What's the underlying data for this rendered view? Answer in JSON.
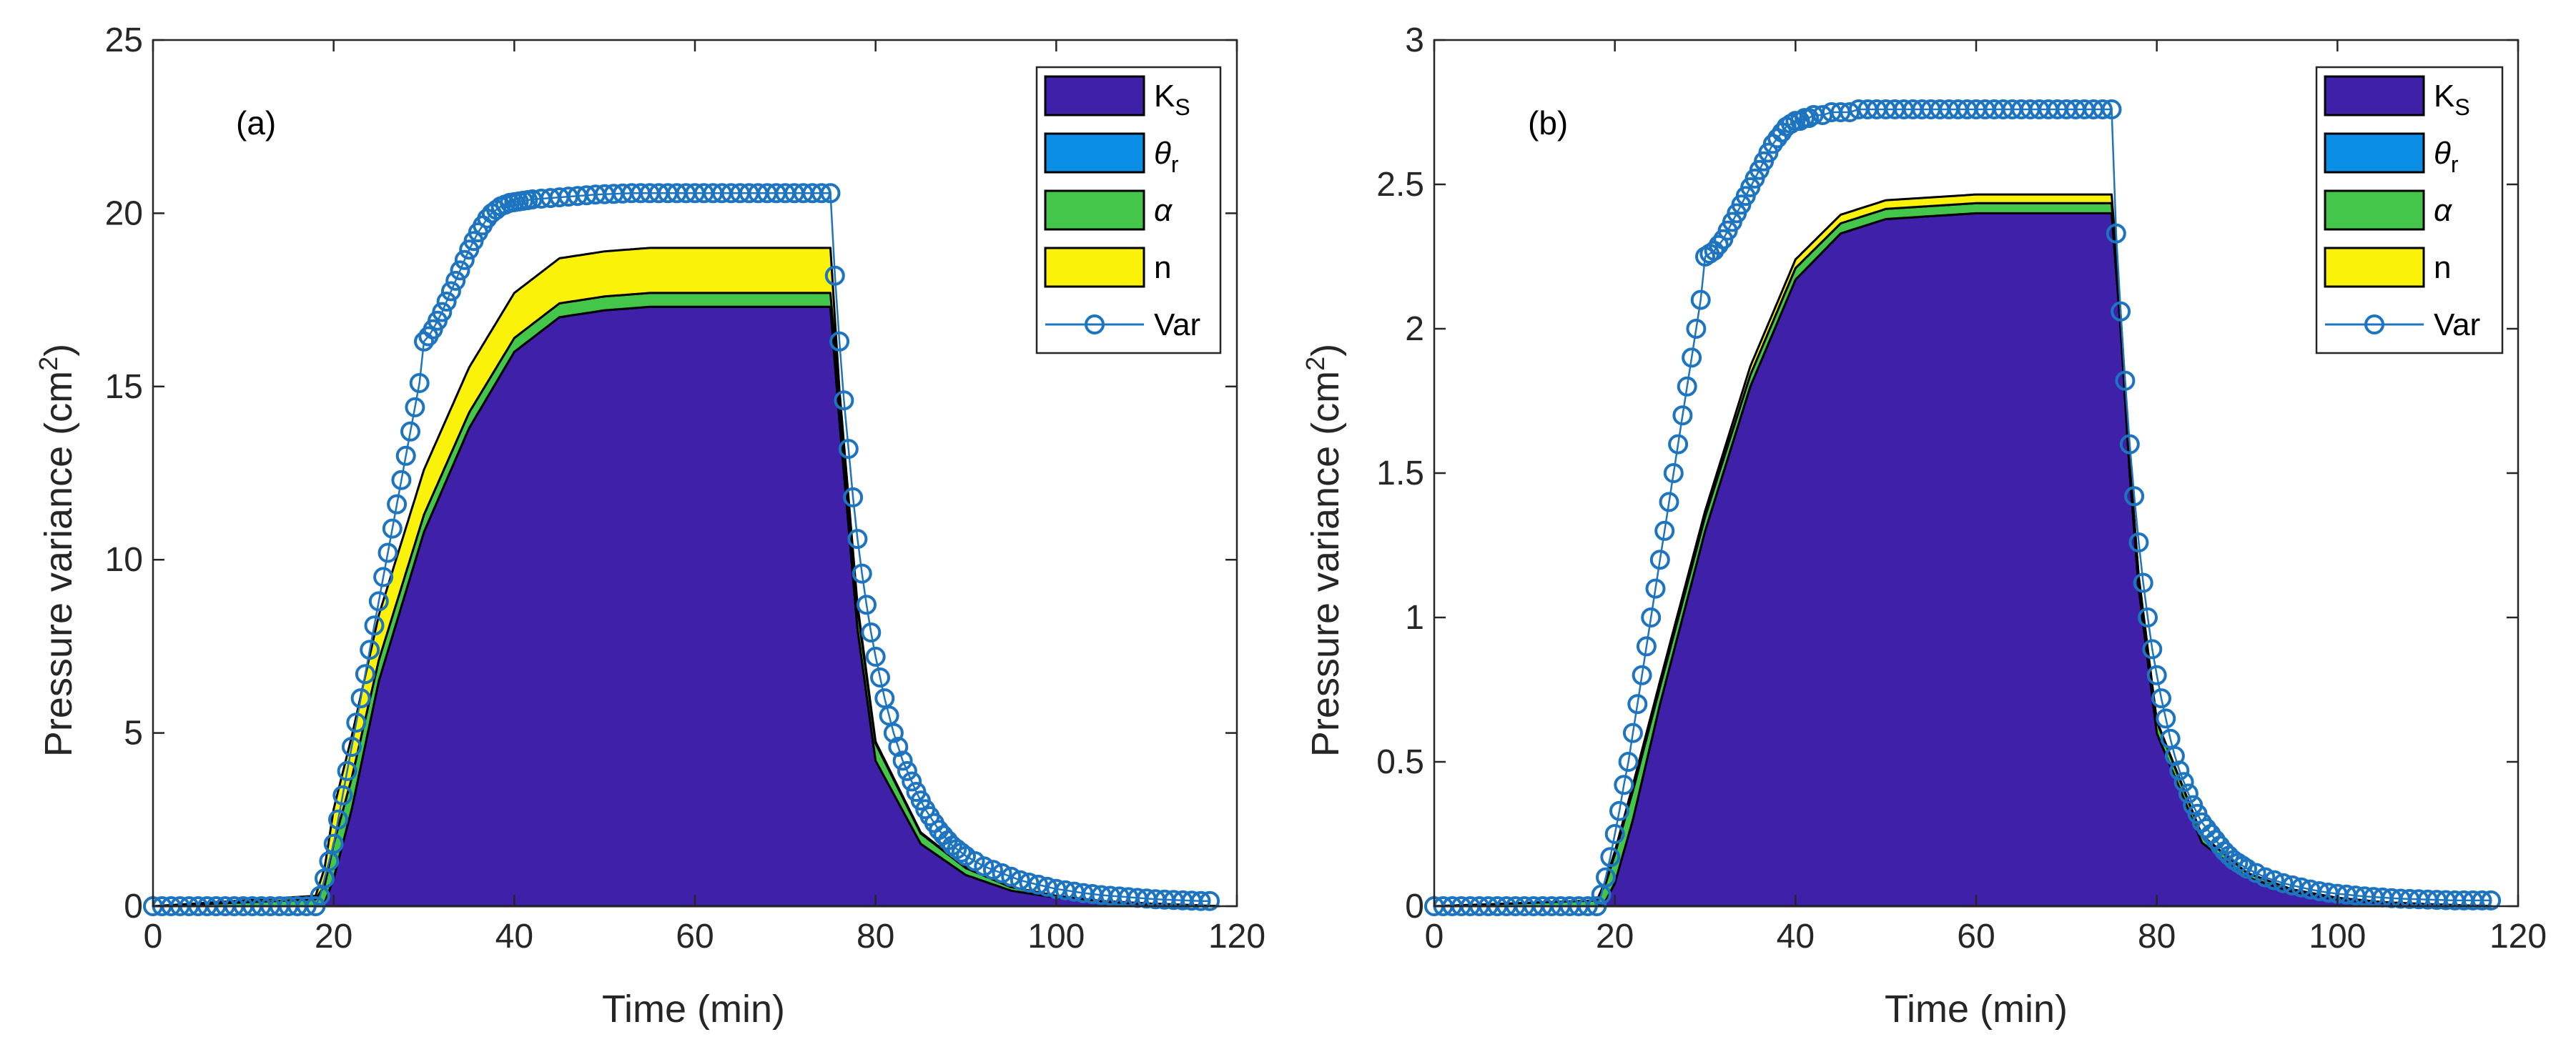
{
  "colors": {
    "Ks": "#3f20a9",
    "theta_r": "#0a8ee6",
    "alpha": "#44c64a",
    "n": "#fbf20a",
    "var_line": "#1d74c0",
    "axis": "#262626"
  },
  "chart_data": [
    {
      "type": "area",
      "panel_label": "(a)",
      "xlabel": "Time (min)",
      "ylabel_prefix": "Pressure variance (cm",
      "ylabel_sup": "2",
      "ylabel_suffix": ")",
      "xlim": [
        0,
        120
      ],
      "ylim": [
        0,
        25
      ],
      "xticks": [
        0,
        20,
        40,
        60,
        80,
        100,
        120
      ],
      "yticks": [
        0,
        5,
        10,
        15,
        20,
        25
      ],
      "xtick_labels": [
        "0",
        "20",
        "40",
        "60",
        "80",
        "100",
        "120"
      ],
      "ytick_labels": [
        "0",
        "5",
        "10",
        "15",
        "20",
        "25"
      ],
      "legend": [
        {
          "key": "Ks",
          "label": "K",
          "sub": "S",
          "italic": false,
          "kind": "patch"
        },
        {
          "key": "theta_r",
          "label": "θ",
          "sub": "r",
          "italic": true,
          "kind": "patch"
        },
        {
          "key": "alpha",
          "label": "α",
          "sub": "",
          "italic": true,
          "kind": "patch"
        },
        {
          "key": "n",
          "label": "n",
          "sub": "",
          "italic": false,
          "kind": "patch"
        },
        {
          "key": "var_line",
          "label": "Var",
          "sub": "",
          "italic": false,
          "kind": "line"
        }
      ],
      "legend_position": "top-right",
      "area_series": [
        {
          "name": "K_S",
          "key": "Ks",
          "x": [
            0,
            18,
            19,
            20,
            22,
            25,
            30,
            35,
            40,
            45,
            50,
            55,
            60,
            65,
            70,
            75,
            76,
            78,
            80,
            85,
            90,
            95,
            100,
            105,
            110,
            118
          ],
          "y": [
            0,
            0,
            0.1,
            0.8,
            2.8,
            6.5,
            10.8,
            13.8,
            16.0,
            17.0,
            17.2,
            17.3,
            17.3,
            17.3,
            17.3,
            17.3,
            14.0,
            8.0,
            4.2,
            1.8,
            0.9,
            0.45,
            0.25,
            0.12,
            0.06,
            0
          ]
        },
        {
          "name": "theta_r",
          "key": "theta_r",
          "x": [
            0,
            118
          ],
          "y": [
            0,
            0
          ]
        },
        {
          "name": "alpha",
          "key": "alpha",
          "x": [
            0,
            18,
            19,
            20,
            22,
            25,
            30,
            35,
            40,
            45,
            50,
            55,
            60,
            65,
            70,
            75,
            76,
            78,
            80,
            85,
            90,
            95,
            100,
            105,
            110,
            118
          ],
          "y": [
            0,
            0.2,
            0.5,
            1.0,
            0.9,
            0.6,
            0.5,
            0.45,
            0.4,
            0.4,
            0.4,
            0.4,
            0.4,
            0.4,
            0.4,
            0.4,
            0.6,
            0.6,
            0.5,
            0.3,
            0.2,
            0.1,
            0.05,
            0.03,
            0.02,
            0
          ]
        },
        {
          "name": "n",
          "key": "n",
          "x": [
            0,
            18,
            19,
            20,
            22,
            25,
            30,
            35,
            40,
            45,
            50,
            55,
            60,
            65,
            70,
            75,
            76,
            78,
            80,
            85,
            90,
            95,
            100,
            105,
            110,
            118
          ],
          "y": [
            0,
            0.1,
            0.5,
            1.0,
            1.2,
            1.3,
            1.3,
            1.3,
            1.3,
            1.3,
            1.3,
            1.3,
            1.3,
            1.3,
            1.3,
            1.3,
            0.3,
            0.1,
            0.05,
            0.03,
            0.02,
            0.01,
            0,
            0,
            0,
            0
          ]
        }
      ],
      "var_series": {
        "name": "Var",
        "x": [
          0,
          1,
          2,
          3,
          4,
          5,
          6,
          7,
          8,
          9,
          10,
          11,
          12,
          13,
          14,
          15,
          16,
          17,
          18,
          18.5,
          19,
          19.5,
          20,
          20.5,
          21,
          21.5,
          22,
          22.5,
          23,
          23.5,
          24,
          24.5,
          25,
          25.5,
          26,
          26.5,
          27,
          27.5,
          28,
          28.5,
          29,
          29.5,
          30,
          30.5,
          31,
          31.5,
          32,
          32.5,
          33,
          33.5,
          34,
          34.5,
          35,
          35.5,
          36,
          36.5,
          37,
          37.5,
          38,
          38.5,
          39,
          39.5,
          40,
          40.5,
          41,
          41.5,
          42,
          43,
          44,
          45,
          46,
          47,
          48,
          49,
          50,
          51,
          52,
          53,
          54,
          55,
          56,
          57,
          58,
          59,
          60,
          61,
          62,
          63,
          64,
          65,
          66,
          67,
          68,
          69,
          70,
          71,
          72,
          73,
          74,
          75,
          75.5,
          76,
          76.5,
          77,
          77.5,
          78,
          78.5,
          79,
          79.5,
          80,
          80.5,
          81,
          81.5,
          82,
          82.5,
          83,
          83.5,
          84,
          84.5,
          85,
          85.5,
          86,
          86.5,
          87,
          87.5,
          88,
          88.5,
          89,
          89.5,
          90,
          91,
          92,
          93,
          94,
          95,
          96,
          97,
          98,
          99,
          100,
          101,
          102,
          103,
          104,
          105,
          106,
          107,
          108,
          109,
          110,
          111,
          112,
          113,
          114,
          115,
          116,
          117
        ],
        "y": [
          0.0,
          0.0,
          0.0,
          0.0,
          0.0,
          0.0,
          0.0,
          0.0,
          0.0,
          0.0,
          0.0,
          0.0,
          0.0,
          0.0,
          0.0,
          0.0,
          0.0,
          0.0,
          0.0,
          0.3,
          0.8,
          1.3,
          1.8,
          2.5,
          3.2,
          3.9,
          4.6,
          5.3,
          6.0,
          6.7,
          7.4,
          8.1,
          8.8,
          9.5,
          10.2,
          10.9,
          11.6,
          12.3,
          13.0,
          13.7,
          14.4,
          15.1,
          16.3,
          16.45,
          16.65,
          16.9,
          17.15,
          17.45,
          17.75,
          18.05,
          18.35,
          18.65,
          18.95,
          19.2,
          19.45,
          19.65,
          19.85,
          20.0,
          20.1,
          20.2,
          20.25,
          20.3,
          20.32,
          20.34,
          20.36,
          20.38,
          20.4,
          20.42,
          20.44,
          20.46,
          20.48,
          20.5,
          20.52,
          20.54,
          20.55,
          20.56,
          20.57,
          20.58,
          20.58,
          20.58,
          20.58,
          20.58,
          20.58,
          20.58,
          20.58,
          20.58,
          20.58,
          20.58,
          20.58,
          20.58,
          20.58,
          20.58,
          20.58,
          20.58,
          20.58,
          20.58,
          20.58,
          20.58,
          20.58,
          20.58,
          18.2,
          16.3,
          14.6,
          13.2,
          11.8,
          10.6,
          9.6,
          8.7,
          7.9,
          7.2,
          6.6,
          6.0,
          5.5,
          5.0,
          4.6,
          4.2,
          3.9,
          3.6,
          3.3,
          3.05,
          2.8,
          2.6,
          2.4,
          2.2,
          2.05,
          1.9,
          1.75,
          1.65,
          1.55,
          1.45,
          1.3,
          1.15,
          1.05,
          0.95,
          0.85,
          0.75,
          0.68,
          0.62,
          0.56,
          0.5,
          0.46,
          0.42,
          0.38,
          0.35,
          0.32,
          0.3,
          0.28,
          0.26,
          0.24,
          0.22,
          0.2,
          0.19,
          0.18,
          0.17,
          0.16,
          0.15,
          0.15
        ]
      }
    },
    {
      "type": "area",
      "panel_label": "(b)",
      "xlabel": "Time (min)",
      "ylabel_prefix": "Pressure variance (cm",
      "ylabel_sup": "2",
      "ylabel_suffix": ")",
      "xlim": [
        0,
        120
      ],
      "ylim": [
        0,
        3
      ],
      "xticks": [
        0,
        20,
        40,
        60,
        80,
        100,
        120
      ],
      "yticks": [
        0,
        0.5,
        1,
        1.5,
        2,
        2.5,
        3
      ],
      "xtick_labels": [
        "0",
        "20",
        "40",
        "60",
        "80",
        "100",
        "120"
      ],
      "ytick_labels": [
        "0",
        "0.5",
        "1",
        "1.5",
        "2",
        "2.5",
        "3"
      ],
      "legend": [
        {
          "key": "Ks",
          "label": "K",
          "sub": "S",
          "italic": false,
          "kind": "patch"
        },
        {
          "key": "theta_r",
          "label": "θ",
          "sub": "r",
          "italic": true,
          "kind": "patch"
        },
        {
          "key": "alpha",
          "label": "α",
          "sub": "",
          "italic": true,
          "kind": "patch"
        },
        {
          "key": "n",
          "label": "n",
          "sub": "",
          "italic": false,
          "kind": "patch"
        },
        {
          "key": "var_line",
          "label": "Var",
          "sub": "",
          "italic": false,
          "kind": "line"
        }
      ],
      "legend_position": "top-right",
      "area_series": [
        {
          "name": "K_S",
          "key": "Ks",
          "x": [
            0,
            18,
            19,
            20,
            22,
            25,
            30,
            35,
            40,
            45,
            50,
            55,
            60,
            65,
            70,
            75,
            76,
            77,
            78,
            80,
            85,
            90,
            95,
            100,
            105,
            110,
            117
          ],
          "y": [
            0,
            0,
            0.02,
            0.08,
            0.3,
            0.7,
            1.3,
            1.8,
            2.17,
            2.33,
            2.38,
            2.39,
            2.4,
            2.4,
            2.4,
            2.4,
            2.0,
            1.5,
            1.1,
            0.6,
            0.22,
            0.1,
            0.05,
            0.025,
            0.012,
            0.006,
            0
          ]
        },
        {
          "name": "theta_r",
          "key": "theta_r",
          "x": [
            0,
            117
          ],
          "y": [
            0,
            0
          ]
        },
        {
          "name": "alpha",
          "key": "alpha",
          "x": [
            0,
            18,
            19,
            20,
            22,
            25,
            30,
            35,
            40,
            45,
            50,
            55,
            60,
            65,
            70,
            75,
            76,
            77,
            78,
            80,
            85,
            90,
            95,
            100,
            105,
            110,
            117
          ],
          "y": [
            0,
            0.02,
            0.06,
            0.1,
            0.1,
            0.06,
            0.05,
            0.04,
            0.04,
            0.035,
            0.035,
            0.035,
            0.035,
            0.035,
            0.035,
            0.035,
            0.04,
            0.04,
            0.04,
            0.04,
            0.025,
            0.015,
            0.008,
            0.004,
            0.002,
            0.001,
            0
          ]
        },
        {
          "name": "n",
          "key": "n",
          "x": [
            0,
            18,
            19,
            20,
            22,
            25,
            30,
            35,
            40,
            45,
            50,
            55,
            60,
            65,
            70,
            75,
            76,
            77,
            78,
            80,
            85,
            90,
            95,
            100,
            105,
            110,
            117
          ],
          "y": [
            0,
            0,
            0.01,
            0.01,
            0.02,
            0.02,
            0.02,
            0.03,
            0.03,
            0.03,
            0.03,
            0.03,
            0.03,
            0.03,
            0.03,
            0.03,
            0.01,
            0.005,
            0.003,
            0.002,
            0.001,
            0,
            0,
            0,
            0,
            0,
            0
          ]
        }
      ],
      "var_series": {
        "name": "Var",
        "x": [
          0,
          1,
          2,
          3,
          4,
          5,
          6,
          7,
          8,
          9,
          10,
          11,
          12,
          13,
          14,
          15,
          16,
          17,
          18,
          18.5,
          19,
          19.5,
          20,
          20.5,
          21,
          21.5,
          22,
          22.5,
          23,
          23.5,
          24,
          24.5,
          25,
          25.5,
          26,
          26.5,
          27,
          27.5,
          28,
          28.5,
          29,
          29.5,
          30,
          30.5,
          31,
          31.5,
          32,
          32.5,
          33,
          33.5,
          34,
          34.5,
          35,
          35.5,
          36,
          36.5,
          37,
          37.5,
          38,
          38.5,
          39,
          39.5,
          40,
          40.5,
          41,
          41.5,
          42,
          43,
          44,
          45,
          46,
          47,
          48,
          49,
          50,
          51,
          52,
          53,
          54,
          55,
          56,
          57,
          58,
          59,
          60,
          61,
          62,
          63,
          64,
          65,
          66,
          67,
          68,
          69,
          70,
          71,
          72,
          73,
          74,
          75,
          75.5,
          76,
          76.5,
          77,
          77.5,
          78,
          78.5,
          79,
          79.5,
          80,
          80.5,
          81,
          81.5,
          82,
          82.5,
          83,
          83.5,
          84,
          84.5,
          85,
          85.5,
          86,
          86.5,
          87,
          87.5,
          88,
          88.5,
          89,
          89.5,
          90,
          91,
          92,
          93,
          94,
          95,
          96,
          97,
          98,
          99,
          100,
          101,
          102,
          103,
          104,
          105,
          106,
          107,
          108,
          109,
          110,
          111,
          112,
          113,
          114,
          115,
          116,
          117
        ],
        "y": [
          0.0,
          0.0,
          0.0,
          0.0,
          0.0,
          0.0,
          0.0,
          0.0,
          0.0,
          0.0,
          0.0,
          0.0,
          0.0,
          0.0,
          0.0,
          0.0,
          0.0,
          0.0,
          0.0,
          0.04,
          0.1,
          0.17,
          0.25,
          0.33,
          0.42,
          0.5,
          0.6,
          0.7,
          0.8,
          0.9,
          1.0,
          1.1,
          1.2,
          1.3,
          1.4,
          1.5,
          1.6,
          1.7,
          1.8,
          1.9,
          2.0,
          2.1,
          2.25,
          2.26,
          2.27,
          2.29,
          2.31,
          2.34,
          2.37,
          2.4,
          2.43,
          2.46,
          2.49,
          2.52,
          2.55,
          2.58,
          2.61,
          2.64,
          2.66,
          2.68,
          2.7,
          2.71,
          2.72,
          2.72,
          2.73,
          2.73,
          2.74,
          2.74,
          2.75,
          2.75,
          2.75,
          2.76,
          2.76,
          2.76,
          2.76,
          2.76,
          2.76,
          2.76,
          2.76,
          2.76,
          2.76,
          2.76,
          2.76,
          2.76,
          2.76,
          2.76,
          2.76,
          2.76,
          2.76,
          2.76,
          2.76,
          2.76,
          2.76,
          2.76,
          2.76,
          2.76,
          2.76,
          2.76,
          2.76,
          2.76,
          2.33,
          2.06,
          1.82,
          1.6,
          1.42,
          1.26,
          1.12,
          1.0,
          0.89,
          0.8,
          0.72,
          0.65,
          0.58,
          0.52,
          0.47,
          0.43,
          0.39,
          0.35,
          0.32,
          0.29,
          0.27,
          0.25,
          0.23,
          0.21,
          0.19,
          0.175,
          0.16,
          0.15,
          0.14,
          0.13,
          0.115,
          0.1,
          0.09,
          0.08,
          0.072,
          0.065,
          0.058,
          0.052,
          0.047,
          0.043,
          0.04,
          0.037,
          0.034,
          0.032,
          0.03,
          0.028,
          0.026,
          0.025,
          0.024,
          0.023,
          0.022,
          0.021,
          0.02,
          0.02,
          0.02,
          0.02,
          0.02
        ]
      }
    }
  ]
}
